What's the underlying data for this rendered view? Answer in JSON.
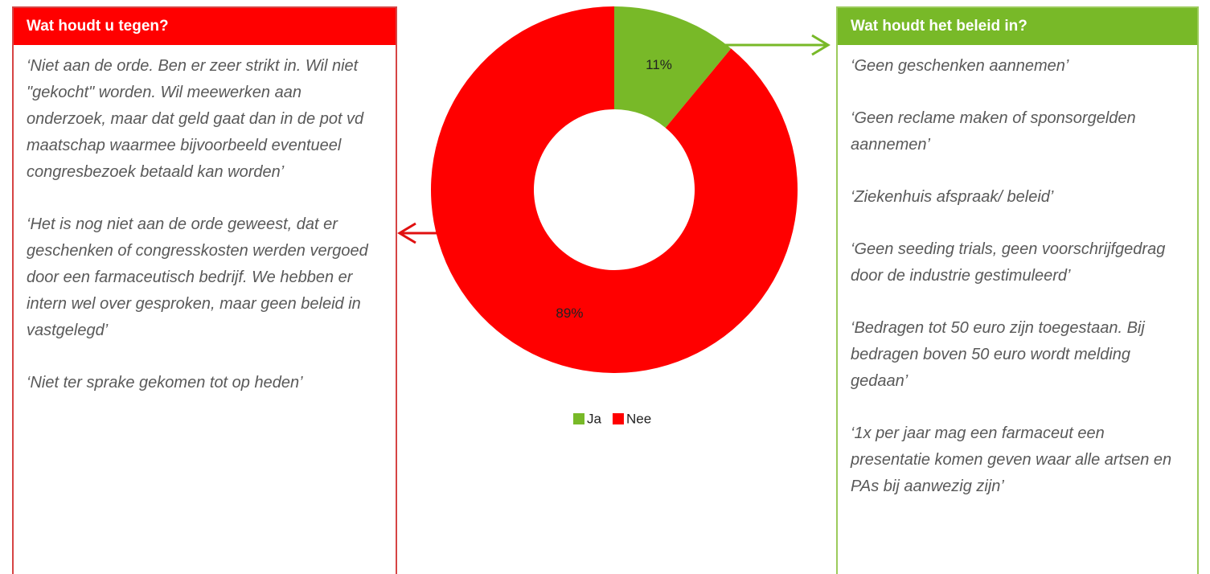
{
  "chart_data": {
    "type": "pie",
    "donut": true,
    "categories": [
      "Ja",
      "Nee"
    ],
    "values": [
      11,
      89
    ],
    "value_labels": [
      "11%",
      "89%"
    ],
    "colors": [
      "#78b928",
      "#ff0000"
    ],
    "legend": "bottom"
  },
  "left_panel": {
    "title": "Wat houdt u tegen?",
    "quotes": [
      "‘Niet aan de orde. Ben er zeer strikt in. Wil niet \"gekocht\" worden. Wil meewerken aan onderzoek, maar dat geld gaat dan in de pot vd maatschap waarmee bijvoorbeeld eventueel congresbezoek betaald kan worden’",
      "‘Het is nog niet aan de orde geweest, dat er geschenken of congresskosten werden vergoed door een farmaceutisch bedrijf. We hebben er intern wel over gesproken, maar geen beleid in vastgelegd’",
      "‘Niet ter sprake gekomen tot op heden’"
    ]
  },
  "right_panel": {
    "title": "Wat houdt het beleid in?",
    "quotes": [
      "‘Geen geschenken aannemen’",
      "‘Geen reclame maken of sponsorgelden aannemen’",
      "‘Ziekenhuis afspraak/ beleid’",
      "‘Geen seeding trials, geen voorschrijfgedrag door de industrie gestimuleerd’",
      "‘Bedragen tot 50 euro zijn toegestaan. Bij bedragen boven 50 euro wordt melding gedaan’",
      "‘1x per jaar mag een farmaceut een presentatie komen geven waar alle artsen en PAs bij aanwezig zijn’"
    ]
  }
}
